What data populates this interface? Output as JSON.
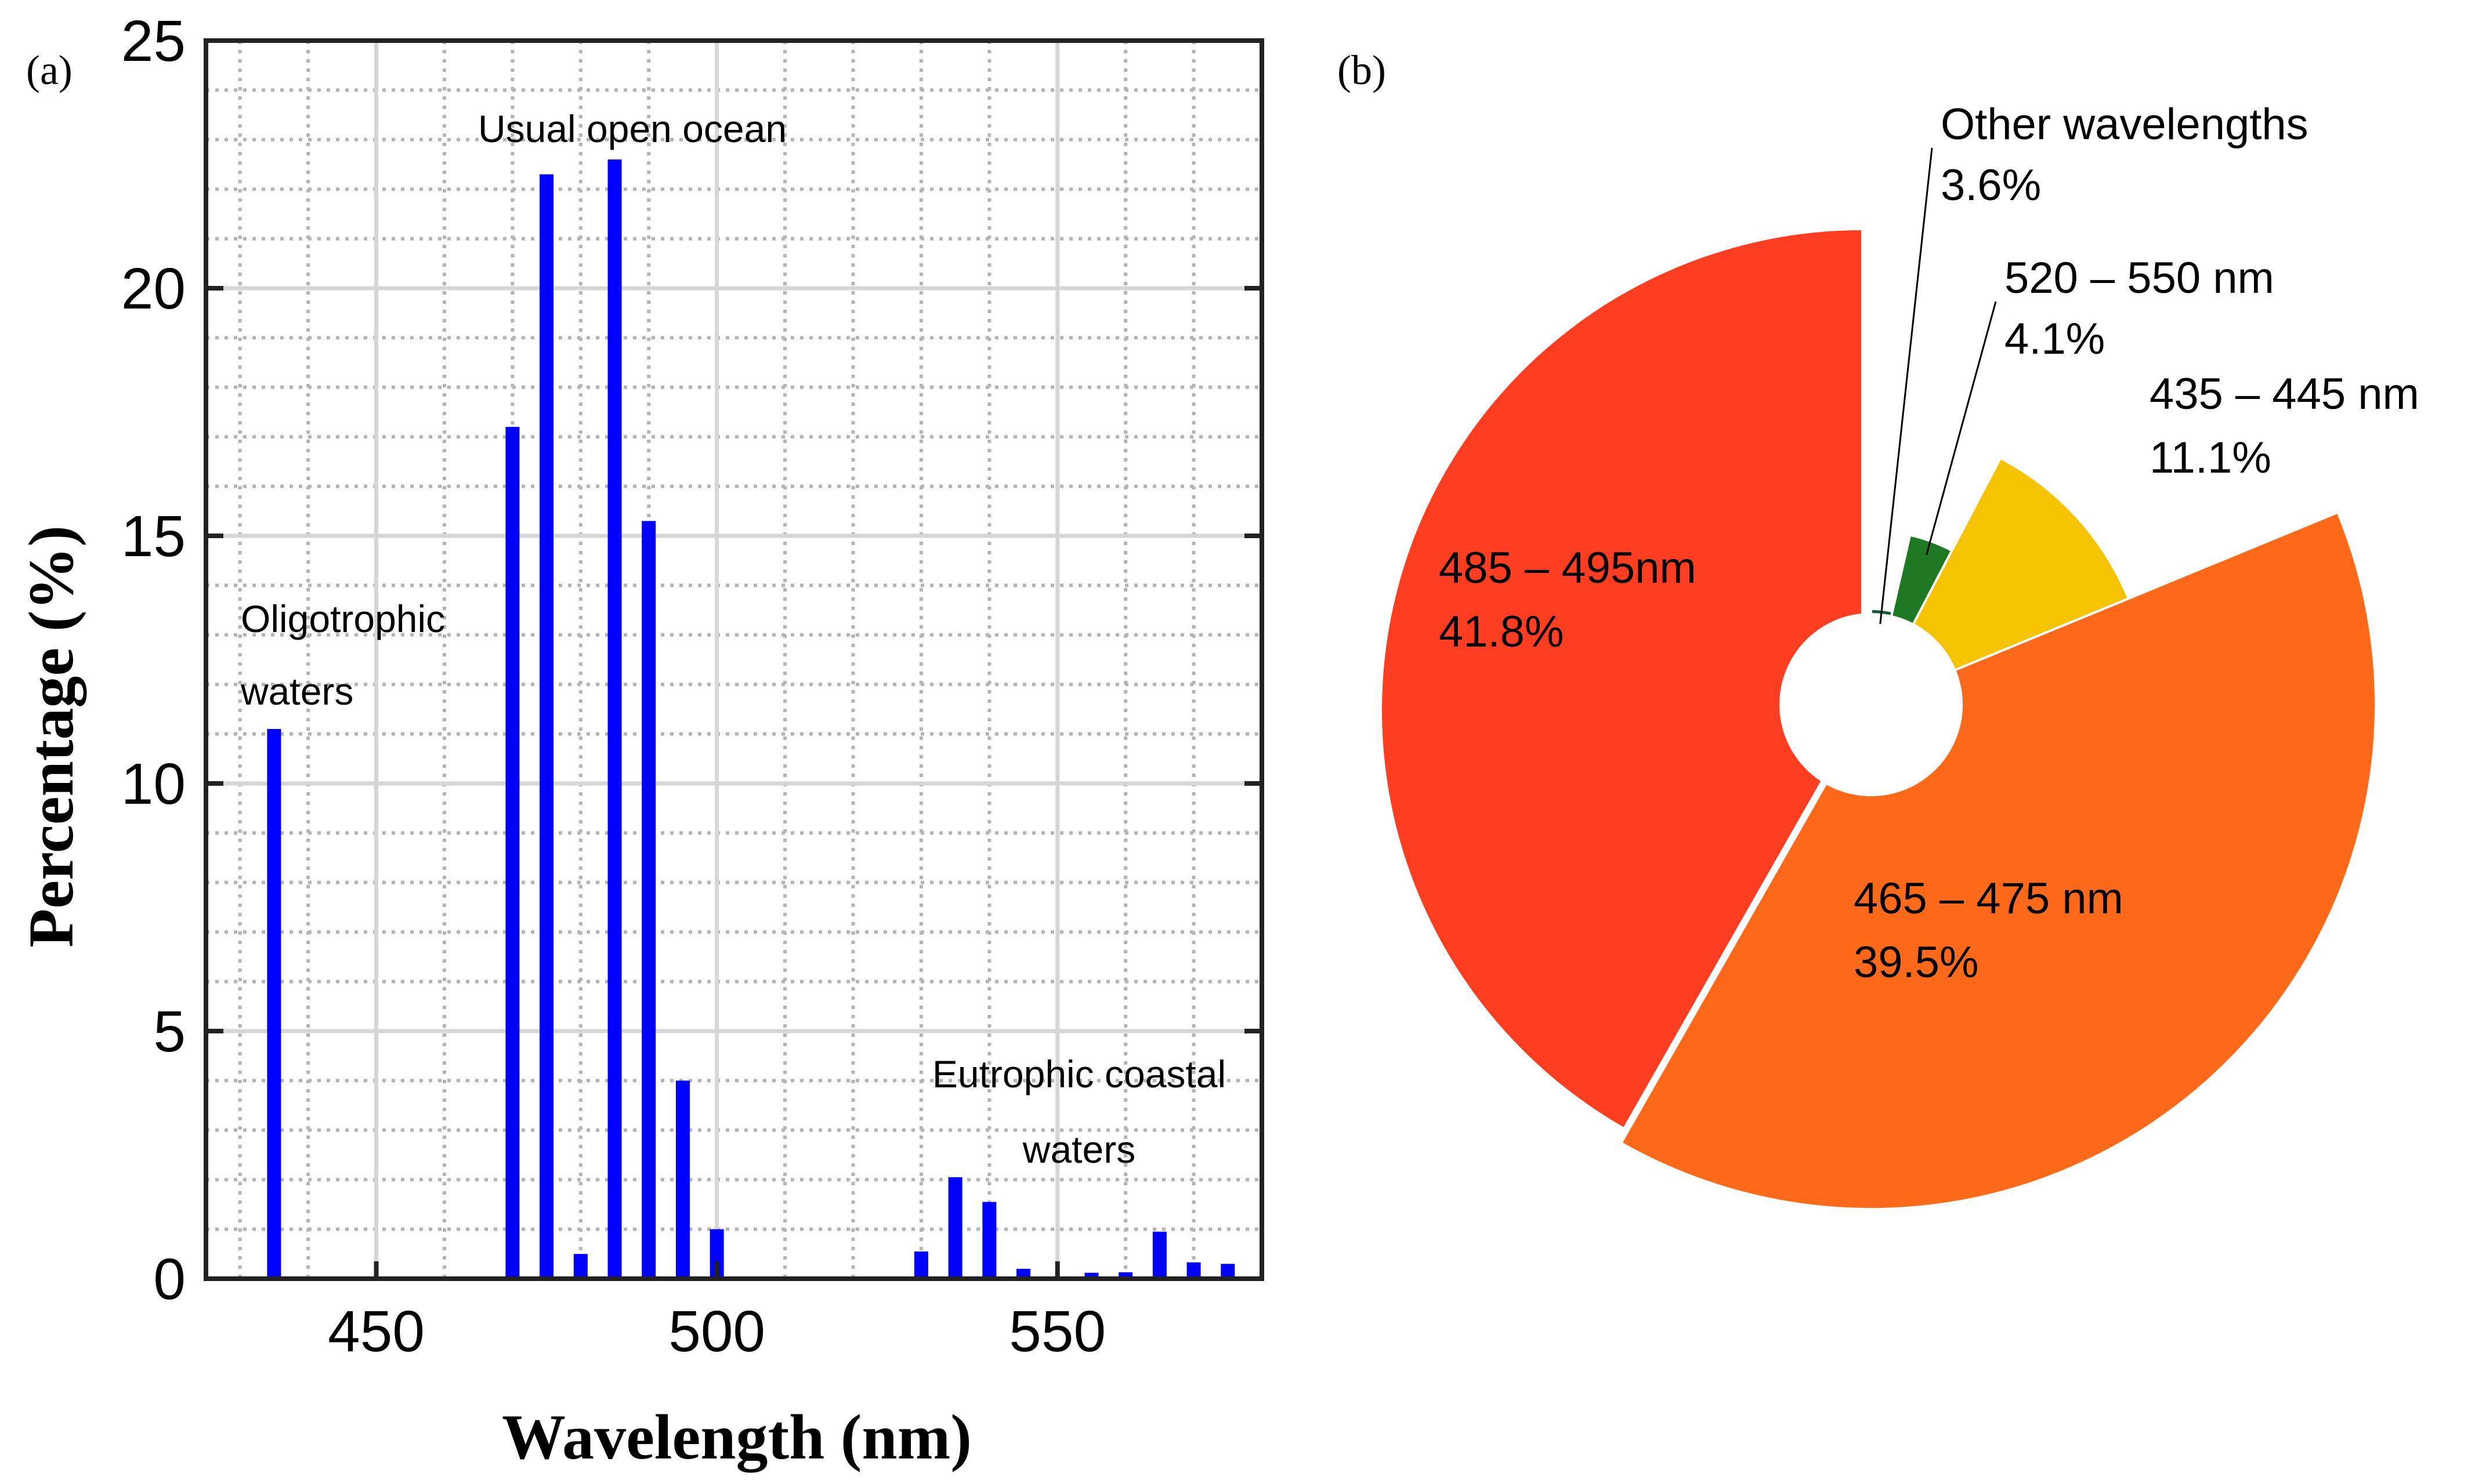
{
  "panel_labels": {
    "a": "(a)",
    "b": "(b)"
  },
  "chart_data": [
    {
      "type": "bar",
      "title": "",
      "xlabel": "Wavelength (nm)",
      "ylabel": "Percentage (%)",
      "xlim": [
        425,
        580
      ],
      "ylim": [
        0,
        25
      ],
      "xticks": [
        450,
        500,
        550
      ],
      "yticks": [
        0,
        5,
        10,
        15,
        20,
        25
      ],
      "bar_color": "#0000ff",
      "grid": true,
      "x": [
        435,
        470,
        475,
        480,
        485,
        490,
        495,
        500,
        530,
        535,
        540,
        545,
        555,
        560,
        565,
        570,
        575
      ],
      "values": [
        11.1,
        17.2,
        22.3,
        0.5,
        22.6,
        15.3,
        4.0,
        1.0,
        0.55,
        2.05,
        1.55,
        0.2,
        0.12,
        0.13,
        0.95,
        0.33,
        0.3
      ],
      "annotations": [
        {
          "lines": [
            "Oligotrophic",
            "waters"
          ]
        },
        {
          "lines": [
            "Usual open ocean"
          ]
        },
        {
          "lines": [
            "Eutrophic coastal",
            "waters"
          ]
        }
      ]
    },
    {
      "type": "pie",
      "title": "",
      "slices": [
        {
          "label": "Other wavelengths",
          "value": 3.6,
          "display": "3.6%",
          "color": "#0d5a36"
        },
        {
          "label": "520 – 550 nm",
          "value": 4.1,
          "display": "4.1%",
          "color": "#1e7a22"
        },
        {
          "label": "435 – 445 nm",
          "value": 11.1,
          "display": "11.1%",
          "color": "#f5c300"
        },
        {
          "label": "465 – 475 nm",
          "value": 39.5,
          "display": "39.5%",
          "color": "#ff6a1a"
        },
        {
          "label": "485 – 495nm",
          "value": 41.8,
          "display": "41.8%",
          "color": "#ff3d20"
        }
      ]
    }
  ]
}
